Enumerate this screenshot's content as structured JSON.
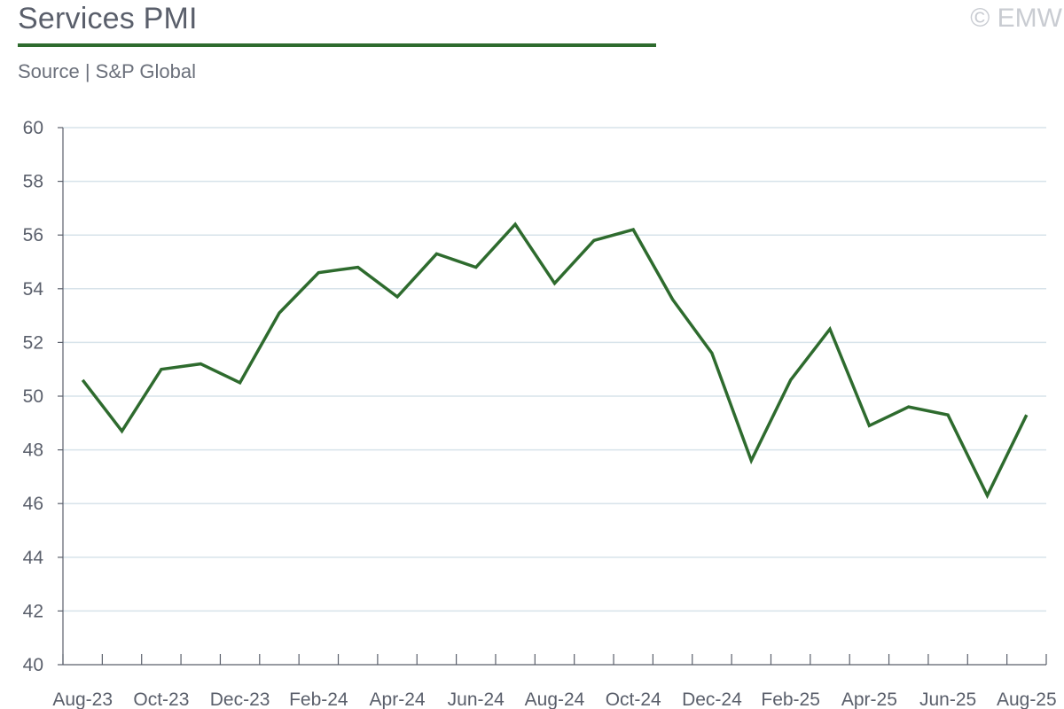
{
  "header": {
    "title": "Services PMI",
    "source": "Source | S&P Global",
    "copyright": "© EMW"
  },
  "colors": {
    "line": "#2e6b2e",
    "title_rule": "#2e6b2e",
    "grid": "#d7e3ea",
    "axis": "#5a5f6b"
  },
  "chart_data": {
    "type": "line",
    "title": "Services PMI",
    "xlabel": "",
    "ylabel": "",
    "ylim": [
      40,
      60
    ],
    "yticks": [
      "40",
      "42",
      "44",
      "46",
      "48",
      "50",
      "52",
      "54",
      "56",
      "58",
      "60"
    ],
    "grid": true,
    "x": [
      "Aug-23",
      "Sep-23",
      "Oct-23",
      "Nov-23",
      "Dec-23",
      "Jan-24",
      "Feb-24",
      "Mar-24",
      "Apr-24",
      "May-24",
      "Jun-24",
      "Jul-24",
      "Aug-24",
      "Sep-24",
      "Oct-24",
      "Nov-24",
      "Dec-24",
      "Jan-25",
      "Feb-25",
      "Mar-25",
      "Apr-25",
      "May-25",
      "Jun-25",
      "Jul-25",
      "Aug-25"
    ],
    "x_tick_labels": [
      "Aug-23",
      "Oct-23",
      "Dec-23",
      "Feb-24",
      "Apr-24",
      "Jun-24",
      "Aug-24",
      "Oct-24",
      "Dec-24",
      "Feb-25",
      "Apr-25",
      "Jun-25",
      "Aug-25"
    ],
    "series": [
      {
        "values": [
          50.6,
          48.7,
          51.0,
          51.2,
          50.5,
          53.1,
          54.6,
          54.8,
          53.7,
          55.3,
          54.8,
          56.4,
          54.2,
          55.8,
          56.2,
          53.6,
          51.6,
          47.6,
          50.6,
          52.5,
          48.9,
          49.6,
          49.3,
          46.3,
          49.3
        ]
      }
    ]
  }
}
